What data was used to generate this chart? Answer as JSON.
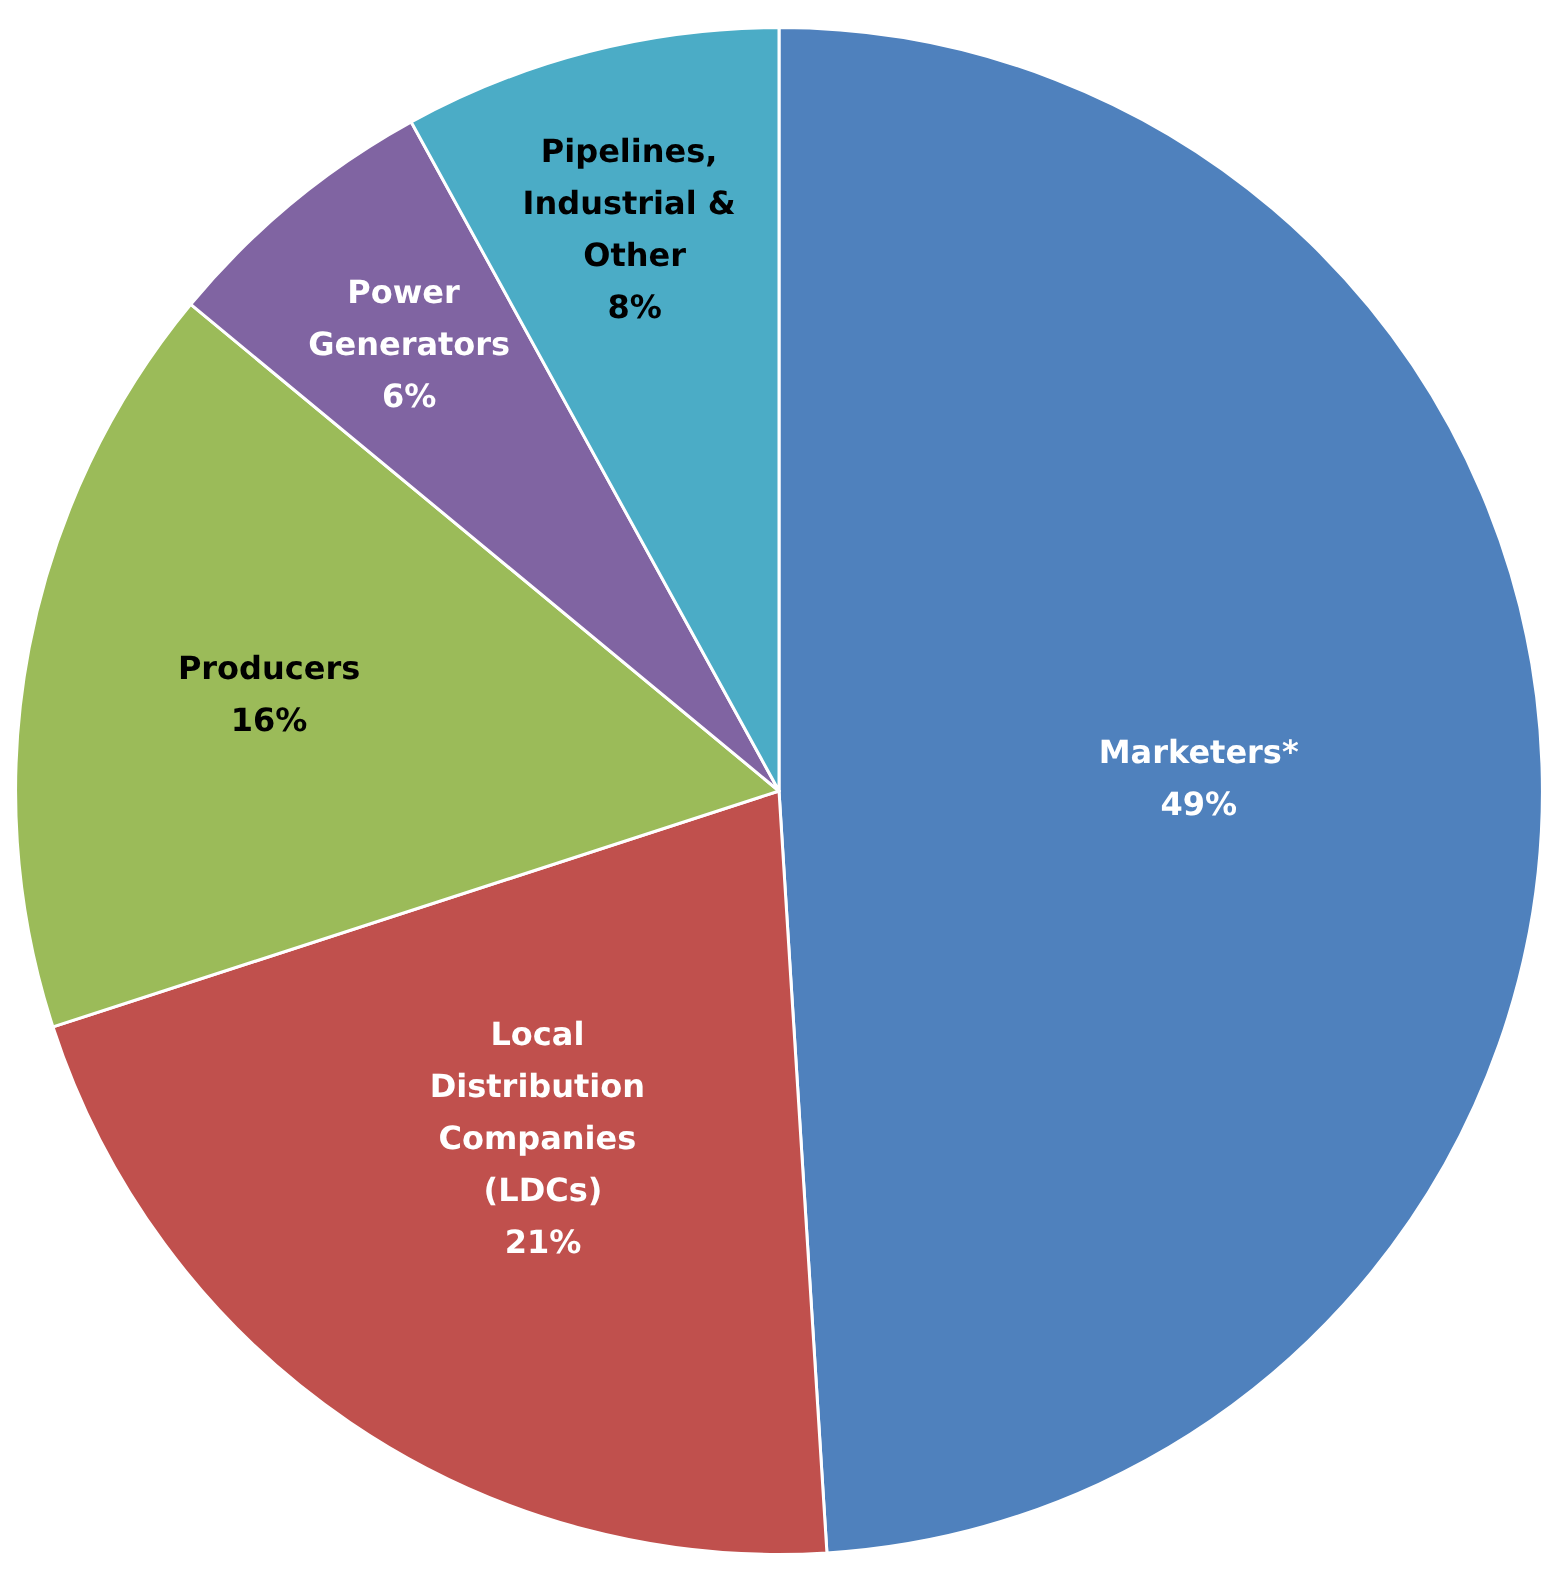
{
  "chart_data": {
    "type": "pie",
    "categories": [
      "Marketers*",
      "Local Distribution Companies (LDCs)",
      "Producers",
      "Power Generators",
      "Pipelines, Industrial & Other"
    ],
    "values": [
      49,
      21,
      16,
      6,
      8
    ],
    "value_labels": [
      "49%",
      "21%",
      "16%",
      "6%",
      "8%"
    ],
    "colors": [
      "#4f81bd",
      "#c0504d",
      "#9bbb59",
      "#8064a2",
      "#4bacc6"
    ],
    "legend": false
  }
}
